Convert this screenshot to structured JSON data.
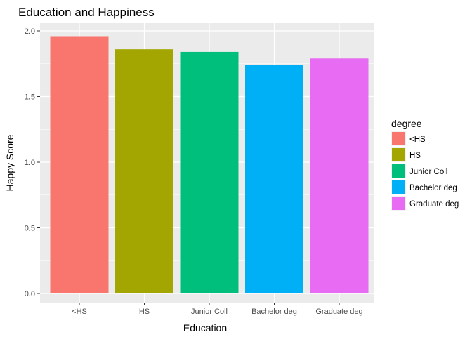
{
  "chart_data": {
    "type": "bar",
    "title": "Education and Happiness",
    "xlabel": "Education",
    "ylabel": "Happy Score",
    "categories": [
      "<HS",
      "HS",
      "Junior Coll",
      "Bachelor deg",
      "Graduate deg"
    ],
    "values": [
      1.96,
      1.86,
      1.84,
      1.74,
      1.79
    ],
    "ylim": [
      0,
      2.05
    ],
    "yticks": [
      "0.0",
      "0.5",
      "1.0",
      "1.5",
      "2.0"
    ],
    "grid": true,
    "legend": {
      "title": "degree",
      "position": "right",
      "items": [
        "<HS",
        "HS",
        "Junior Coll",
        "Bachelor deg",
        "Graduate deg"
      ]
    },
    "colors": [
      "#F8766D",
      "#A3A500",
      "#00BF7D",
      "#00B0F6",
      "#E76BF3"
    ],
    "panel_background": "#EBEBEB",
    "grid_color": "#FFFFFF"
  }
}
